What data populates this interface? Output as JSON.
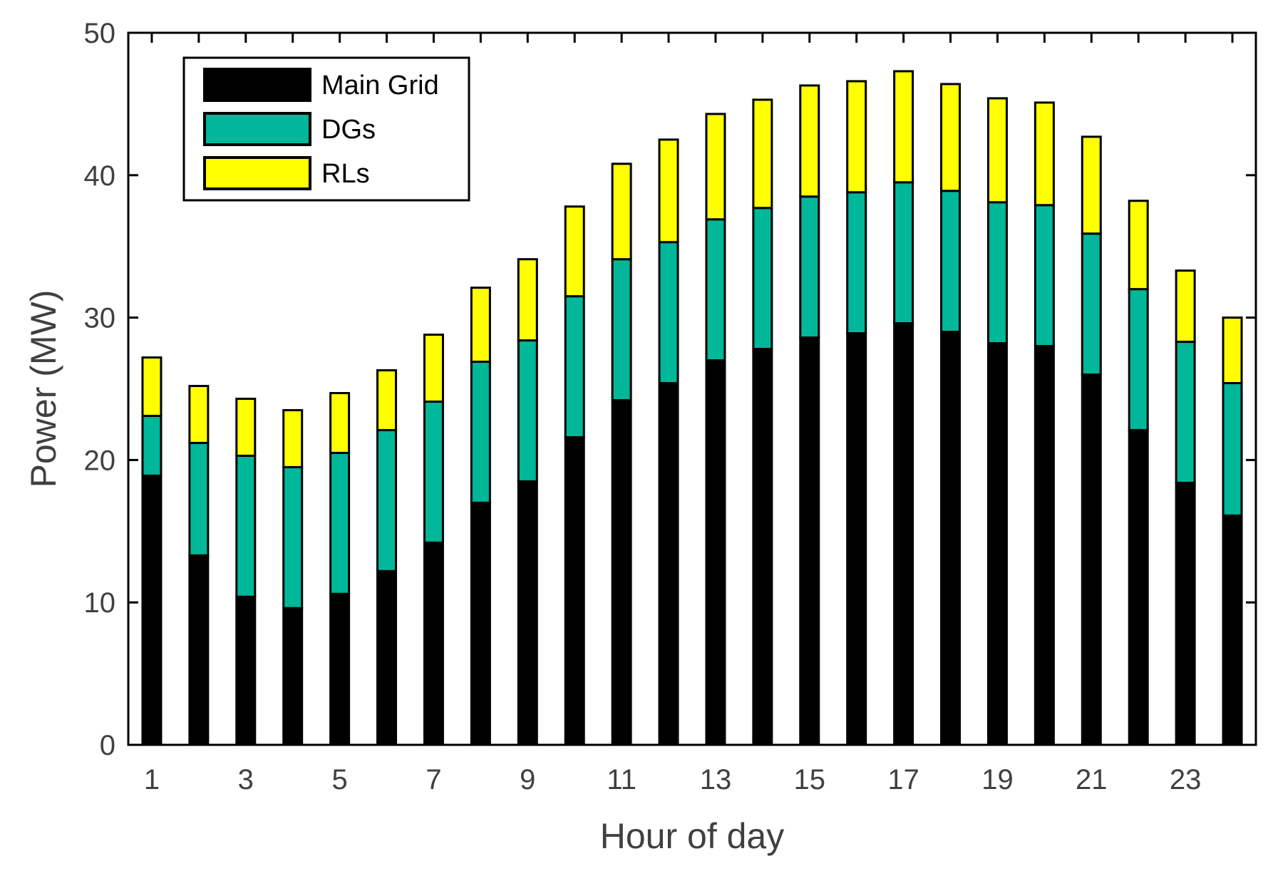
{
  "chart_data": {
    "type": "bar",
    "stacked": true,
    "title": "",
    "xlabel": "Hour of day",
    "ylabel": "Power (MW)",
    "ylim": [
      0,
      50
    ],
    "yticks": [
      0,
      10,
      20,
      30,
      40,
      50
    ],
    "xtick_labels": [
      "1",
      "3",
      "5",
      "7",
      "9",
      "11",
      "13",
      "15",
      "17",
      "19",
      "21",
      "23"
    ],
    "categories": [
      1,
      2,
      3,
      4,
      5,
      6,
      7,
      8,
      9,
      10,
      11,
      12,
      13,
      14,
      15,
      16,
      17,
      18,
      19,
      20,
      21,
      22,
      23,
      24
    ],
    "legend_position": "top-left",
    "series": [
      {
        "name": "Main Grid",
        "color": "#000000",
        "values": [
          18.9,
          13.3,
          10.4,
          9.6,
          10.6,
          12.2,
          14.2,
          17.0,
          18.5,
          21.6,
          24.2,
          25.4,
          27.0,
          27.8,
          28.6,
          28.9,
          29.6,
          29.0,
          28.2,
          28.0,
          26.0,
          22.1,
          18.4,
          16.1
        ]
      },
      {
        "name": "DGs",
        "color": "#00B79A",
        "values": [
          4.2,
          7.9,
          9.9,
          9.9,
          9.9,
          9.9,
          9.9,
          9.9,
          9.9,
          9.9,
          9.9,
          9.9,
          9.9,
          9.9,
          9.9,
          9.9,
          9.9,
          9.9,
          9.9,
          9.9,
          9.9,
          9.9,
          9.9,
          9.3
        ]
      },
      {
        "name": "RLs",
        "color": "#FFFF00",
        "values": [
          4.1,
          4.0,
          4.0,
          4.0,
          4.2,
          4.2,
          4.7,
          5.2,
          5.7,
          6.3,
          6.7,
          7.2,
          7.4,
          7.6,
          7.8,
          7.8,
          7.8,
          7.5,
          7.3,
          7.2,
          6.8,
          6.2,
          5.0,
          4.6
        ]
      }
    ]
  }
}
